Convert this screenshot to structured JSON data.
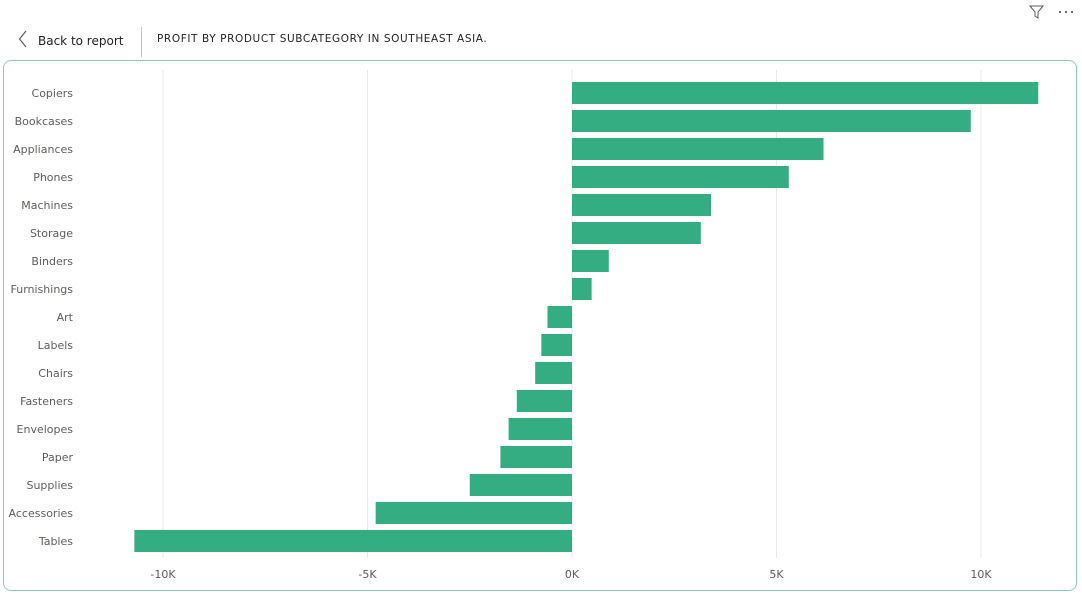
{
  "toolbar": {
    "filter_icon": "filter-icon",
    "more_icon": "more-options-icon"
  },
  "header": {
    "back_label": "Back to report",
    "title": "PROFIT BY PRODUCT SUBCATEGORY IN SOUTHEAST ASIA."
  },
  "colors": {
    "bar": "#34ad82",
    "gridline": "#e8e8e8",
    "card_border": "#8fc9c3"
  },
  "chart_data": {
    "type": "bar",
    "orientation": "horizontal",
    "title": "PROFIT BY PRODUCT SUBCATEGORY IN SOUTHEAST ASIA.",
    "categories": [
      "Copiers",
      "Bookcases",
      "Appliances",
      "Phones",
      "Machines",
      "Storage",
      "Binders",
      "Furnishings",
      "Art",
      "Labels",
      "Chairs",
      "Fasteners",
      "Envelopes",
      "Paper",
      "Supplies",
      "Accessories",
      "Tables"
    ],
    "values": [
      11400,
      9750,
      6150,
      5300,
      3400,
      3150,
      900,
      480,
      -600,
      -750,
      -900,
      -1350,
      -1550,
      -1750,
      -2500,
      -4800,
      -10700
    ],
    "xlim": [
      -10000,
      10000
    ],
    "xticks": [
      -10000,
      -5000,
      0,
      5000,
      10000
    ],
    "xtick_labels": [
      "-10K",
      "-5K",
      "0K",
      "5K",
      "10K"
    ],
    "grid": true,
    "legend": "none"
  }
}
